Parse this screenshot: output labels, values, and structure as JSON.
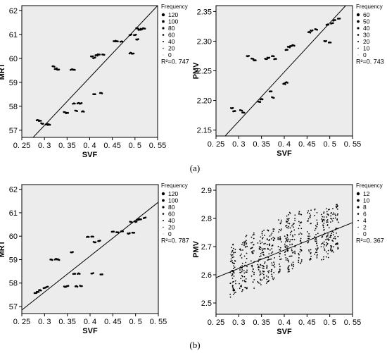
{
  "captions": [
    "(a)",
    "(b)"
  ],
  "chart_data": [
    {
      "type": "scatter",
      "xlabel": "SVF",
      "ylabel": "MRT",
      "xlim": [
        0.25,
        0.55
      ],
      "ylim": [
        56.7,
        62.2
      ],
      "xticks": [
        "0. 25",
        "0. 3",
        "0. 35",
        "0. 4",
        "0. 45",
        "0. 5",
        "0. 55"
      ],
      "xtick_values": [
        0.25,
        0.3,
        0.35,
        0.4,
        0.45,
        0.5,
        0.55
      ],
      "yticks": [
        "57",
        "58",
        "59",
        "60",
        "61",
        "62"
      ],
      "ytick_values": [
        57,
        58,
        59,
        60,
        61,
        62
      ],
      "legend_title": "Frequency",
      "legend_labels": [
        "120",
        "100",
        "80",
        "60",
        "40",
        "20",
        "0"
      ],
      "r2_label": "R²=0. 747",
      "fit_line": [
        [
          0.25,
          56.2
        ],
        [
          0.55,
          62.2
        ]
      ],
      "points": [
        [
          0.285,
          57.42
        ],
        [
          0.29,
          57.4
        ],
        [
          0.295,
          57.28
        ],
        [
          0.305,
          57.25
        ],
        [
          0.31,
          57.23
        ],
        [
          0.32,
          59.66
        ],
        [
          0.325,
          59.57
        ],
        [
          0.33,
          59.53
        ],
        [
          0.345,
          57.75
        ],
        [
          0.35,
          57.72
        ],
        [
          0.36,
          59.53
        ],
        [
          0.365,
          59.52
        ],
        [
          0.365,
          58.12
        ],
        [
          0.37,
          57.81
        ],
        [
          0.375,
          58.13
        ],
        [
          0.38,
          58.12
        ],
        [
          0.385,
          57.78
        ],
        [
          0.405,
          60.08
        ],
        [
          0.41,
          58.5
        ],
        [
          0.41,
          60.02
        ],
        [
          0.415,
          60.12
        ],
        [
          0.42,
          60.15
        ],
        [
          0.425,
          58.55
        ],
        [
          0.43,
          60.16
        ],
        [
          0.455,
          60.72
        ],
        [
          0.46,
          60.71
        ],
        [
          0.47,
          60.7
        ],
        [
          0.49,
          60.22
        ],
        [
          0.49,
          60.98
        ],
        [
          0.495,
          60.2
        ],
        [
          0.5,
          60.98
        ],
        [
          0.505,
          60.8
        ],
        [
          0.505,
          61.25
        ],
        [
          0.51,
          61.2
        ],
        [
          0.515,
          61.22
        ],
        [
          0.52,
          61.25
        ]
      ]
    },
    {
      "type": "scatter",
      "xlabel": "SVF",
      "ylabel": "PMV",
      "xlim": [
        0.25,
        0.55
      ],
      "ylim": [
        2.14,
        2.36
      ],
      "xticks": [
        "0. 25",
        "0. 3",
        "0. 35",
        "0. 4",
        "0. 45",
        "0. 5",
        "0. 55"
      ],
      "xtick_values": [
        0.25,
        0.3,
        0.35,
        0.4,
        0.45,
        0.5,
        0.55
      ],
      "yticks": [
        "2.15",
        "2.20",
        "2.25",
        "2.30",
        "2.35"
      ],
      "ytick_values": [
        2.15,
        2.2,
        2.25,
        2.3,
        2.35
      ],
      "legend_title": "Frequency",
      "legend_labels": [
        "60",
        "50",
        "40",
        "30",
        "20",
        "10",
        "0"
      ],
      "r2_label": "R²=0. 743",
      "fit_line": [
        [
          0.27,
          2.14
        ],
        [
          0.535,
          2.36
        ]
      ],
      "points": [
        [
          0.285,
          2.187
        ],
        [
          0.29,
          2.182
        ],
        [
          0.305,
          2.183
        ],
        [
          0.31,
          2.18
        ],
        [
          0.32,
          2.275
        ],
        [
          0.33,
          2.27
        ],
        [
          0.335,
          2.268
        ],
        [
          0.345,
          2.198
        ],
        [
          0.35,
          2.202
        ],
        [
          0.36,
          2.27
        ],
        [
          0.365,
          2.272
        ],
        [
          0.37,
          2.215
        ],
        [
          0.375,
          2.205
        ],
        [
          0.375,
          2.275
        ],
        [
          0.38,
          2.27
        ],
        [
          0.4,
          2.228
        ],
        [
          0.405,
          2.23
        ],
        [
          0.405,
          2.285
        ],
        [
          0.41,
          2.29
        ],
        [
          0.415,
          2.292
        ],
        [
          0.42,
          2.293
        ],
        [
          0.455,
          2.315
        ],
        [
          0.46,
          2.318
        ],
        [
          0.47,
          2.32
        ],
        [
          0.49,
          2.3
        ],
        [
          0.495,
          2.328
        ],
        [
          0.5,
          2.298
        ],
        [
          0.505,
          2.33
        ],
        [
          0.51,
          2.335
        ],
        [
          0.52,
          2.338
        ]
      ]
    },
    {
      "type": "scatter",
      "xlabel": "SVF",
      "ylabel": "MRT",
      "xlim": [
        0.25,
        0.55
      ],
      "ylim": [
        56.7,
        62.2
      ],
      "xticks": [
        "0. 25",
        "0. 3",
        "0. 35",
        "0. 4",
        "0. 45",
        "0. 5",
        "0. 55"
      ],
      "xtick_values": [
        0.25,
        0.3,
        0.35,
        0.4,
        0.45,
        0.5,
        0.55
      ],
      "yticks": [
        "57",
        "58",
        "59",
        "60",
        "61",
        "62"
      ],
      "ytick_values": [
        57,
        58,
        59,
        60,
        61,
        62
      ],
      "legend_title": "Frequency",
      "legend_labels": [
        "120",
        "100",
        "80",
        "60",
        "40",
        "20",
        "0"
      ],
      "r2_label": "R²=0. 787",
      "fit_line": [
        [
          0.25,
          56.85
        ],
        [
          0.55,
          61.45
        ]
      ],
      "points": [
        [
          0.28,
          57.58
        ],
        [
          0.285,
          57.62
        ],
        [
          0.29,
          57.7
        ],
        [
          0.3,
          57.8
        ],
        [
          0.305,
          57.83
        ],
        [
          0.315,
          59.0
        ],
        [
          0.325,
          59.02
        ],
        [
          0.33,
          59.0
        ],
        [
          0.345,
          57.85
        ],
        [
          0.35,
          57.88
        ],
        [
          0.36,
          59.32
        ],
        [
          0.365,
          58.4
        ],
        [
          0.37,
          57.86
        ],
        [
          0.375,
          58.4
        ],
        [
          0.38,
          57.88
        ],
        [
          0.395,
          59.98
        ],
        [
          0.405,
          59.97
        ],
        [
          0.405,
          58.42
        ],
        [
          0.41,
          59.75
        ],
        [
          0.42,
          59.8
        ],
        [
          0.425,
          58.38
        ],
        [
          0.45,
          60.18
        ],
        [
          0.46,
          60.16
        ],
        [
          0.47,
          60.2
        ],
        [
          0.485,
          60.12
        ],
        [
          0.49,
          60.6
        ],
        [
          0.495,
          60.15
        ],
        [
          0.5,
          60.62
        ],
        [
          0.505,
          60.7
        ],
        [
          0.51,
          60.72
        ],
        [
          0.52,
          60.78
        ]
      ]
    },
    {
      "type": "scatter",
      "xlabel": "SVF",
      "ylabel": "PMV",
      "xlim": [
        0.25,
        0.55
      ],
      "ylim": [
        2.46,
        2.92
      ],
      "xticks": [
        "0. 25",
        "0. 3",
        "0. 35",
        "0. 4",
        "0. 45",
        "0. 5",
        "0. 55"
      ],
      "xtick_values": [
        0.25,
        0.3,
        0.35,
        0.4,
        0.45,
        0.5,
        0.55
      ],
      "yticks": [
        "2.5",
        "2.6",
        "2.7",
        "2.8",
        "2.9"
      ],
      "ytick_values": [
        2.5,
        2.6,
        2.7,
        2.8,
        2.9
      ],
      "legend_title": "Frequency",
      "legend_labels": [
        "12",
        "10",
        "8",
        "6",
        "4",
        "2",
        "0"
      ],
      "r2_label": "R²=0. 367",
      "fit_line": [
        [
          0.25,
          2.59
        ],
        [
          0.55,
          2.785
        ]
      ],
      "clusters": [
        {
          "x": 0.285,
          "ymin": 2.52,
          "ymax": 2.71
        },
        {
          "x": 0.29,
          "ymin": 2.53,
          "ymax": 2.7
        },
        {
          "x": 0.305,
          "ymin": 2.54,
          "ymax": 2.72
        },
        {
          "x": 0.315,
          "ymin": 2.55,
          "ymax": 2.74
        },
        {
          "x": 0.33,
          "ymin": 2.55,
          "ymax": 2.75
        },
        {
          "x": 0.345,
          "ymin": 2.56,
          "ymax": 2.74
        },
        {
          "x": 0.355,
          "ymin": 2.58,
          "ymax": 2.77
        },
        {
          "x": 0.365,
          "ymin": 2.57,
          "ymax": 2.78
        },
        {
          "x": 0.375,
          "ymin": 2.58,
          "ymax": 2.77
        },
        {
          "x": 0.39,
          "ymin": 2.6,
          "ymax": 2.8
        },
        {
          "x": 0.405,
          "ymin": 2.61,
          "ymax": 2.82
        },
        {
          "x": 0.41,
          "ymin": 2.6,
          "ymax": 2.83
        },
        {
          "x": 0.42,
          "ymin": 2.62,
          "ymax": 2.82
        },
        {
          "x": 0.435,
          "ymin": 2.64,
          "ymax": 2.83
        },
        {
          "x": 0.455,
          "ymin": 2.65,
          "ymax": 2.83
        },
        {
          "x": 0.47,
          "ymin": 2.66,
          "ymax": 2.84
        },
        {
          "x": 0.485,
          "ymin": 2.65,
          "ymax": 2.84
        },
        {
          "x": 0.495,
          "ymin": 2.66,
          "ymax": 2.85
        },
        {
          "x": 0.505,
          "ymin": 2.68,
          "ymax": 2.84
        },
        {
          "x": 0.515,
          "ymin": 2.69,
          "ymax": 2.85
        }
      ]
    }
  ]
}
